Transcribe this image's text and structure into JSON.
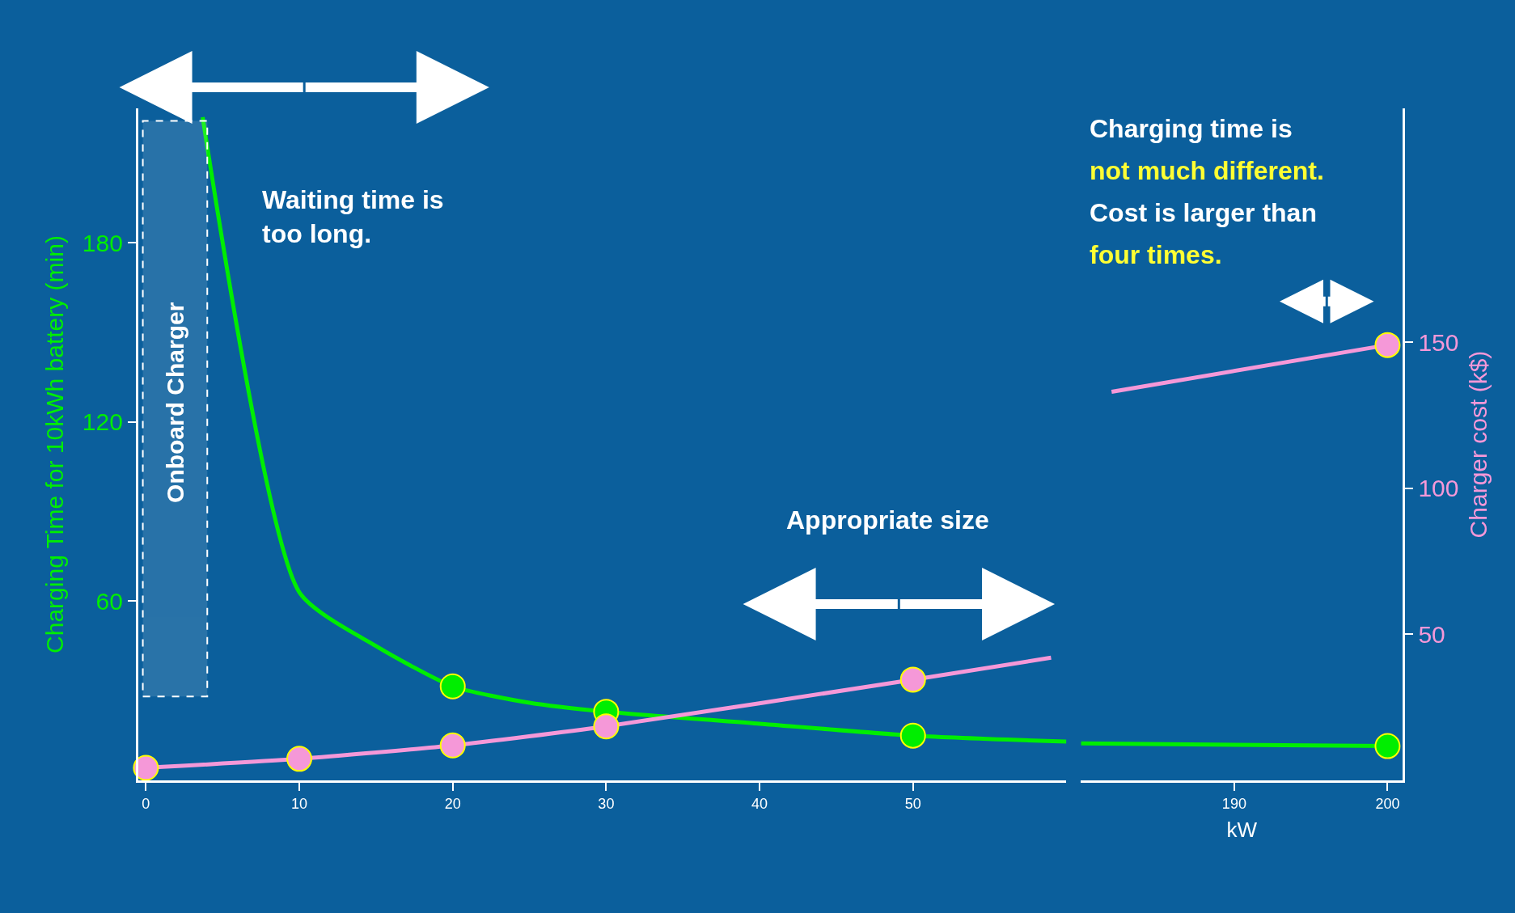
{
  "chart_data": [
    {
      "type": "line",
      "ylabel": "Charging Time for 10kWh battery (min)",
      "xlim": [
        -0.5,
        60
      ],
      "xticks": [
        0,
        10,
        20,
        30,
        40,
        50
      ],
      "ylim": [
        0,
        225
      ],
      "yticks": [
        60,
        120,
        180
      ],
      "y2lim": [
        0,
        230
      ],
      "grid": false,
      "annotations": [
        "Waiting time is too long.",
        "Appropriate size"
      ],
      "bands": [
        {
          "axis": "x",
          "from": -0.2,
          "to": 4,
          "label": "Onboard Charger",
          "color": "#ffffff"
        }
      ],
      "series": [
        {
          "color": "#00ee00",
          "marker": "none",
          "x": [
            3.7,
            10,
            15,
            20,
            25,
            30,
            40,
            50,
            60
          ],
          "values": [
            222,
            63,
            45,
            31.5,
            26,
            23,
            19,
            15,
            13
          ]
        },
        {
          "type": "scatter",
          "color": "#00ee00",
          "marker": "circle",
          "x": [
            20,
            30,
            50
          ],
          "values": [
            31.5,
            23,
            15
          ]
        },
        {
          "color": "#f598d8",
          "marker": "none",
          "axis": "y2",
          "x": [
            0,
            10,
            20,
            30,
            50,
            59
          ],
          "values": [
            4.3,
            7.4,
            12,
            18.5,
            34.5,
            42
          ]
        },
        {
          "type": "scatter",
          "color": "#f598d8",
          "marker": "circle",
          "axis": "y2",
          "x": [
            0,
            10,
            20,
            30,
            50
          ],
          "values": [
            4.3,
            7.4,
            12,
            18.5,
            34.5
          ]
        }
      ]
    },
    {
      "type": "line",
      "xlabel": "kW",
      "y2label": "Charger cost (k$)",
      "xlim": [
        180,
        201
      ],
      "xticks": [
        190,
        200
      ],
      "ylim": [
        0,
        225
      ],
      "y2lim": [
        0,
        230
      ],
      "y2ticks": [
        50,
        100,
        150
      ],
      "grid": false,
      "annotations": [
        "Charging time is",
        "not much different.",
        "Cost is larger than",
        "four times."
      ],
      "series": [
        {
          "color": "#00ee00",
          "marker": "none",
          "x": [
            180,
            200
          ],
          "values": [
            12.4,
            11.5
          ]
        },
        {
          "type": "scatter",
          "color": "#00ee00",
          "marker": "circle",
          "x": [
            200
          ],
          "values": [
            11.5
          ]
        },
        {
          "color": "#f598d8",
          "marker": "none",
          "axis": "y2",
          "x": [
            182,
            200
          ],
          "values": [
            133,
            149
          ]
        },
        {
          "type": "scatter",
          "color": "#f598d8",
          "marker": "circle",
          "axis": "y2",
          "x": [
            200
          ],
          "values": [
            149
          ]
        }
      ]
    }
  ]
}
